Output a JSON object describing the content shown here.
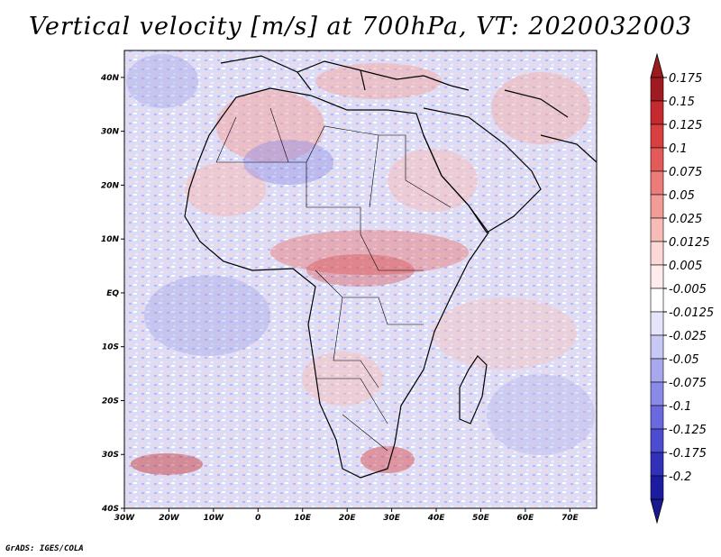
{
  "title": "Vertical velocity [m/s] at 700hPa, VT: 2020032003",
  "footer": "GrADS: IGES/COLA",
  "map": {
    "projection": "latlon",
    "lon_range": [
      -30,
      76
    ],
    "lat_range": [
      -40,
      45
    ],
    "lon_ticks": [
      {
        "value": -30,
        "label": "30W"
      },
      {
        "value": -20,
        "label": "20W"
      },
      {
        "value": -10,
        "label": "10W"
      },
      {
        "value": 0,
        "label": "0"
      },
      {
        "value": 10,
        "label": "10E"
      },
      {
        "value": 20,
        "label": "20E"
      },
      {
        "value": 30,
        "label": "30E"
      },
      {
        "value": 40,
        "label": "40E"
      },
      {
        "value": 50,
        "label": "50E"
      },
      {
        "value": 60,
        "label": "60E"
      },
      {
        "value": 70,
        "label": "70E"
      }
    ],
    "lat_ticks": [
      {
        "value": 40,
        "label": "40N"
      },
      {
        "value": 30,
        "label": "30N"
      },
      {
        "value": 20,
        "label": "20N"
      },
      {
        "value": 10,
        "label": "10N"
      },
      {
        "value": 0,
        "label": "EQ"
      },
      {
        "value": -10,
        "label": "10S"
      },
      {
        "value": -20,
        "label": "20S"
      },
      {
        "value": -30,
        "label": "30S"
      },
      {
        "value": -40,
        "label": "40S"
      }
    ]
  },
  "colorbar": {
    "levels": [
      {
        "label": "0.175",
        "color": "#a01a22"
      },
      {
        "label": "0.15",
        "color": "#c42a2e"
      },
      {
        "label": "0.125",
        "color": "#d84040"
      },
      {
        "label": "0.1",
        "color": "#e45a58"
      },
      {
        "label": "0.075",
        "color": "#ec7c78"
      },
      {
        "label": "0.05",
        "color": "#f29c98"
      },
      {
        "label": "0.025",
        "color": "#f7bcb8"
      },
      {
        "label": "0.0125",
        "color": "#fbd8d5"
      },
      {
        "label": "0.005",
        "color": "#fdeceb"
      },
      {
        "label": "-0.005",
        "color": "#ffffff"
      },
      {
        "label": "-0.0125",
        "color": "#e4e4fb"
      },
      {
        "label": "-0.025",
        "color": "#c8c8f4"
      },
      {
        "label": "-0.05",
        "color": "#a8a8ee"
      },
      {
        "label": "-0.075",
        "color": "#8a8ae8"
      },
      {
        "label": "-0.1",
        "color": "#6a6ade"
      },
      {
        "label": "-0.125",
        "color": "#4c4cd0"
      },
      {
        "label": "-0.175",
        "color": "#3030b8"
      },
      {
        "label": "-0.2",
        "color": "#1c1ca0"
      }
    ],
    "top_arrow_color": "#9a1c1c",
    "bottom_arrow_color": "#1a1a90"
  }
}
